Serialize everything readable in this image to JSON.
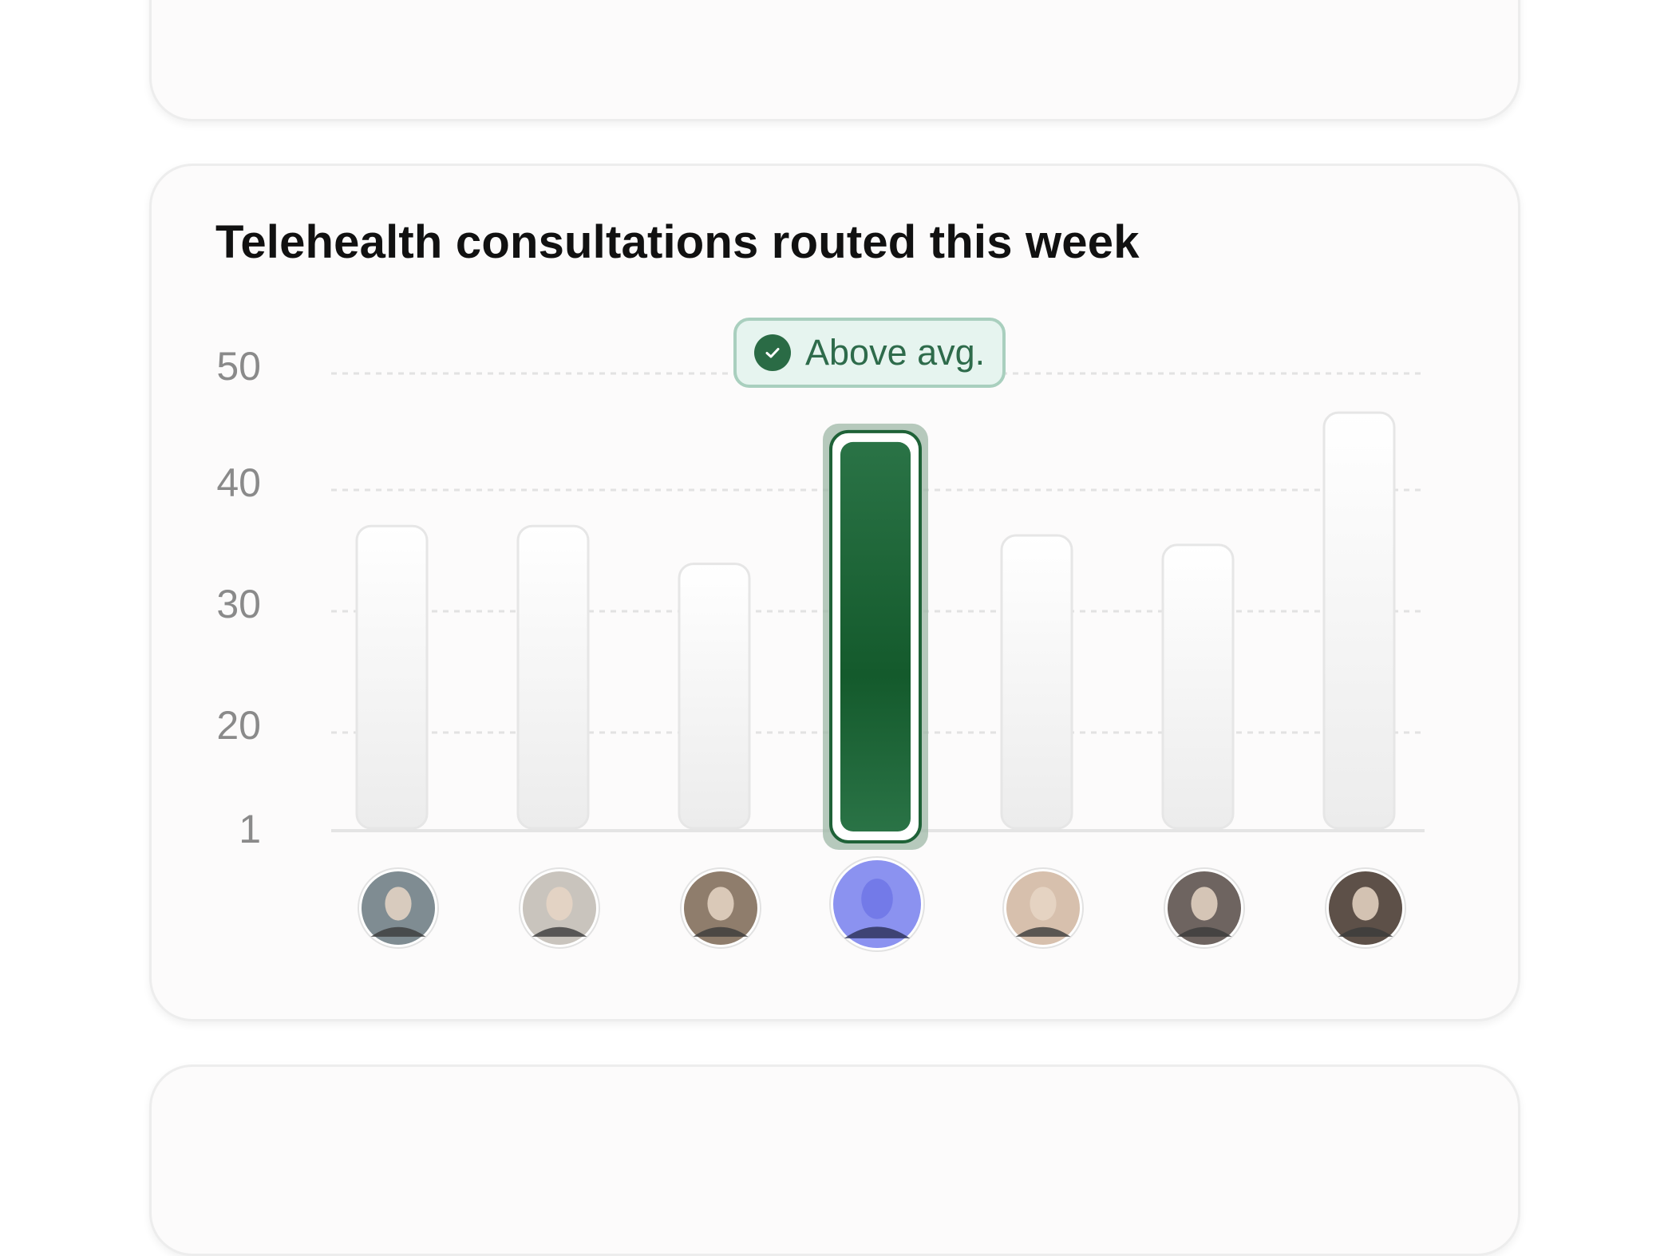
{
  "cards": {
    "top": {},
    "bottom": {}
  },
  "chart_data": {
    "type": "bar",
    "title": "Telehealth consultations routed this week",
    "yticks": [
      "50",
      "40",
      "30",
      "20",
      "1"
    ],
    "ylim": [
      1,
      50
    ],
    "grid": true,
    "categories": [
      "",
      "",
      "",
      "",
      "",
      "",
      ""
    ],
    "values": [
      33,
      33,
      29,
      43,
      32,
      31,
      45
    ],
    "highlight_index": 3,
    "annotation": {
      "label": "Above avg.",
      "icon": "check-circle-icon",
      "bar_index": 3
    },
    "x_axis_markers": [
      "avatar",
      "avatar",
      "avatar",
      "avatar",
      "avatar",
      "avatar",
      "avatar"
    ],
    "colors": {
      "highlight": "#1f6238",
      "bar": "#f3f3f3",
      "badge_bg": "#e6f4ef",
      "badge_text": "#2e6b4b",
      "avatar_highlight": "#8b92f0"
    }
  }
}
